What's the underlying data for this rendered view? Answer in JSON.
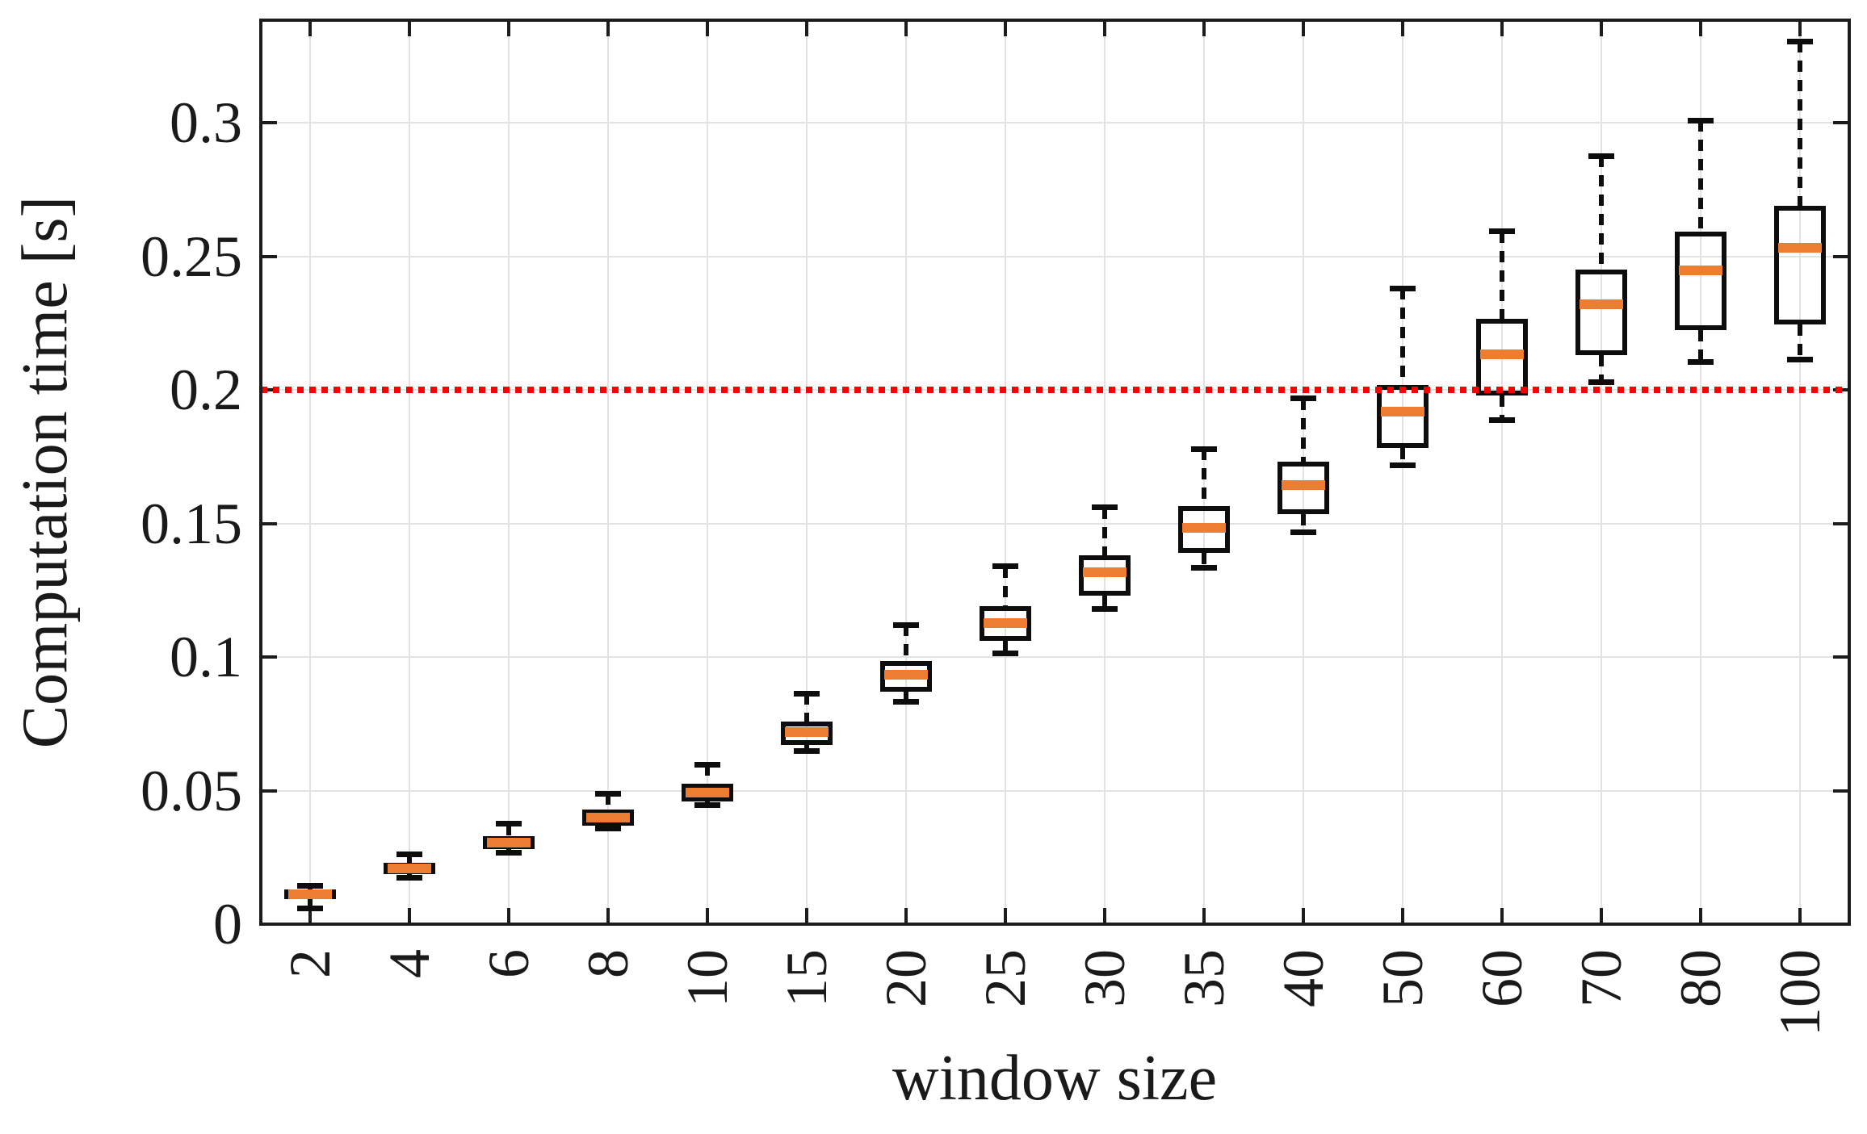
{
  "chart_data": {
    "type": "boxplot",
    "xlabel": "window size",
    "ylabel": "Computation time [s]",
    "categories": [
      "2",
      "4",
      "6",
      "8",
      "10",
      "15",
      "20",
      "25",
      "30",
      "35",
      "40",
      "50",
      "60",
      "70",
      "80",
      "100"
    ],
    "series": [
      {
        "label": "2",
        "whislo": 0.006,
        "q1": 0.0095,
        "med": 0.0112,
        "q3": 0.013,
        "whishi": 0.0145
      },
      {
        "label": "4",
        "whislo": 0.0175,
        "q1": 0.0187,
        "med": 0.0208,
        "q3": 0.023,
        "whishi": 0.026
      },
      {
        "label": "6",
        "whislo": 0.0268,
        "q1": 0.028,
        "med": 0.0306,
        "q3": 0.0329,
        "whishi": 0.0375
      },
      {
        "label": "8",
        "whislo": 0.0359,
        "q1": 0.0369,
        "med": 0.0399,
        "q3": 0.0429,
        "whishi": 0.0489
      },
      {
        "label": "10",
        "whislo": 0.0447,
        "q1": 0.0459,
        "med": 0.0493,
        "q3": 0.0526,
        "whishi": 0.0598
      },
      {
        "label": "15",
        "whislo": 0.0647,
        "q1": 0.0671,
        "med": 0.0719,
        "q3": 0.0758,
        "whishi": 0.0864
      },
      {
        "label": "20",
        "whislo": 0.0834,
        "q1": 0.087,
        "med": 0.0933,
        "q3": 0.0985,
        "whishi": 0.112
      },
      {
        "label": "25",
        "whislo": 0.1015,
        "q1": 0.106,
        "med": 0.1128,
        "q3": 0.1192,
        "whishi": 0.134
      },
      {
        "label": "30",
        "whislo": 0.118,
        "q1": 0.123,
        "med": 0.1317,
        "q3": 0.138,
        "whishi": 0.156
      },
      {
        "label": "35",
        "whislo": 0.1335,
        "q1": 0.139,
        "med": 0.1485,
        "q3": 0.1565,
        "whishi": 0.178
      },
      {
        "label": "40",
        "whislo": 0.1467,
        "q1": 0.1535,
        "med": 0.1643,
        "q3": 0.1733,
        "whishi": 0.1969
      },
      {
        "label": "50",
        "whislo": 0.1718,
        "q1": 0.1783,
        "med": 0.1919,
        "q3": 0.202,
        "whishi": 0.2381
      },
      {
        "label": "60",
        "whislo": 0.1887,
        "q1": 0.198,
        "med": 0.2135,
        "q3": 0.2268,
        "whishi": 0.2594
      },
      {
        "label": "70",
        "whislo": 0.203,
        "q1": 0.2132,
        "med": 0.232,
        "q3": 0.245,
        "whishi": 0.2877
      },
      {
        "label": "80",
        "whislo": 0.2105,
        "q1": 0.2223,
        "med": 0.2447,
        "q3": 0.2592,
        "whishi": 0.301
      },
      {
        "label": "100",
        "whislo": 0.2115,
        "q1": 0.2246,
        "med": 0.2533,
        "q3": 0.269,
        "whishi": 0.3305
      }
    ],
    "yticks": [
      0,
      0.05,
      0.1,
      0.15,
      0.2,
      0.25,
      0.3
    ],
    "yticklabels": [
      "0",
      "0.05",
      "0.1",
      "0.15",
      "0.2",
      "0.25",
      "0.3"
    ],
    "ylim": [
      0,
      0.3385
    ],
    "grid": true,
    "legend": false,
    "refline": {
      "value": 0.2,
      "style": "dotted"
    },
    "colors": {
      "median": "#ed7d31",
      "box_border": "#0d0d0d",
      "whisker": "#0d0d0d",
      "grid": "#e2e2e2",
      "axis": "#1c1c1c",
      "text": "#1a1a1a",
      "refline": "#fa0000"
    }
  }
}
